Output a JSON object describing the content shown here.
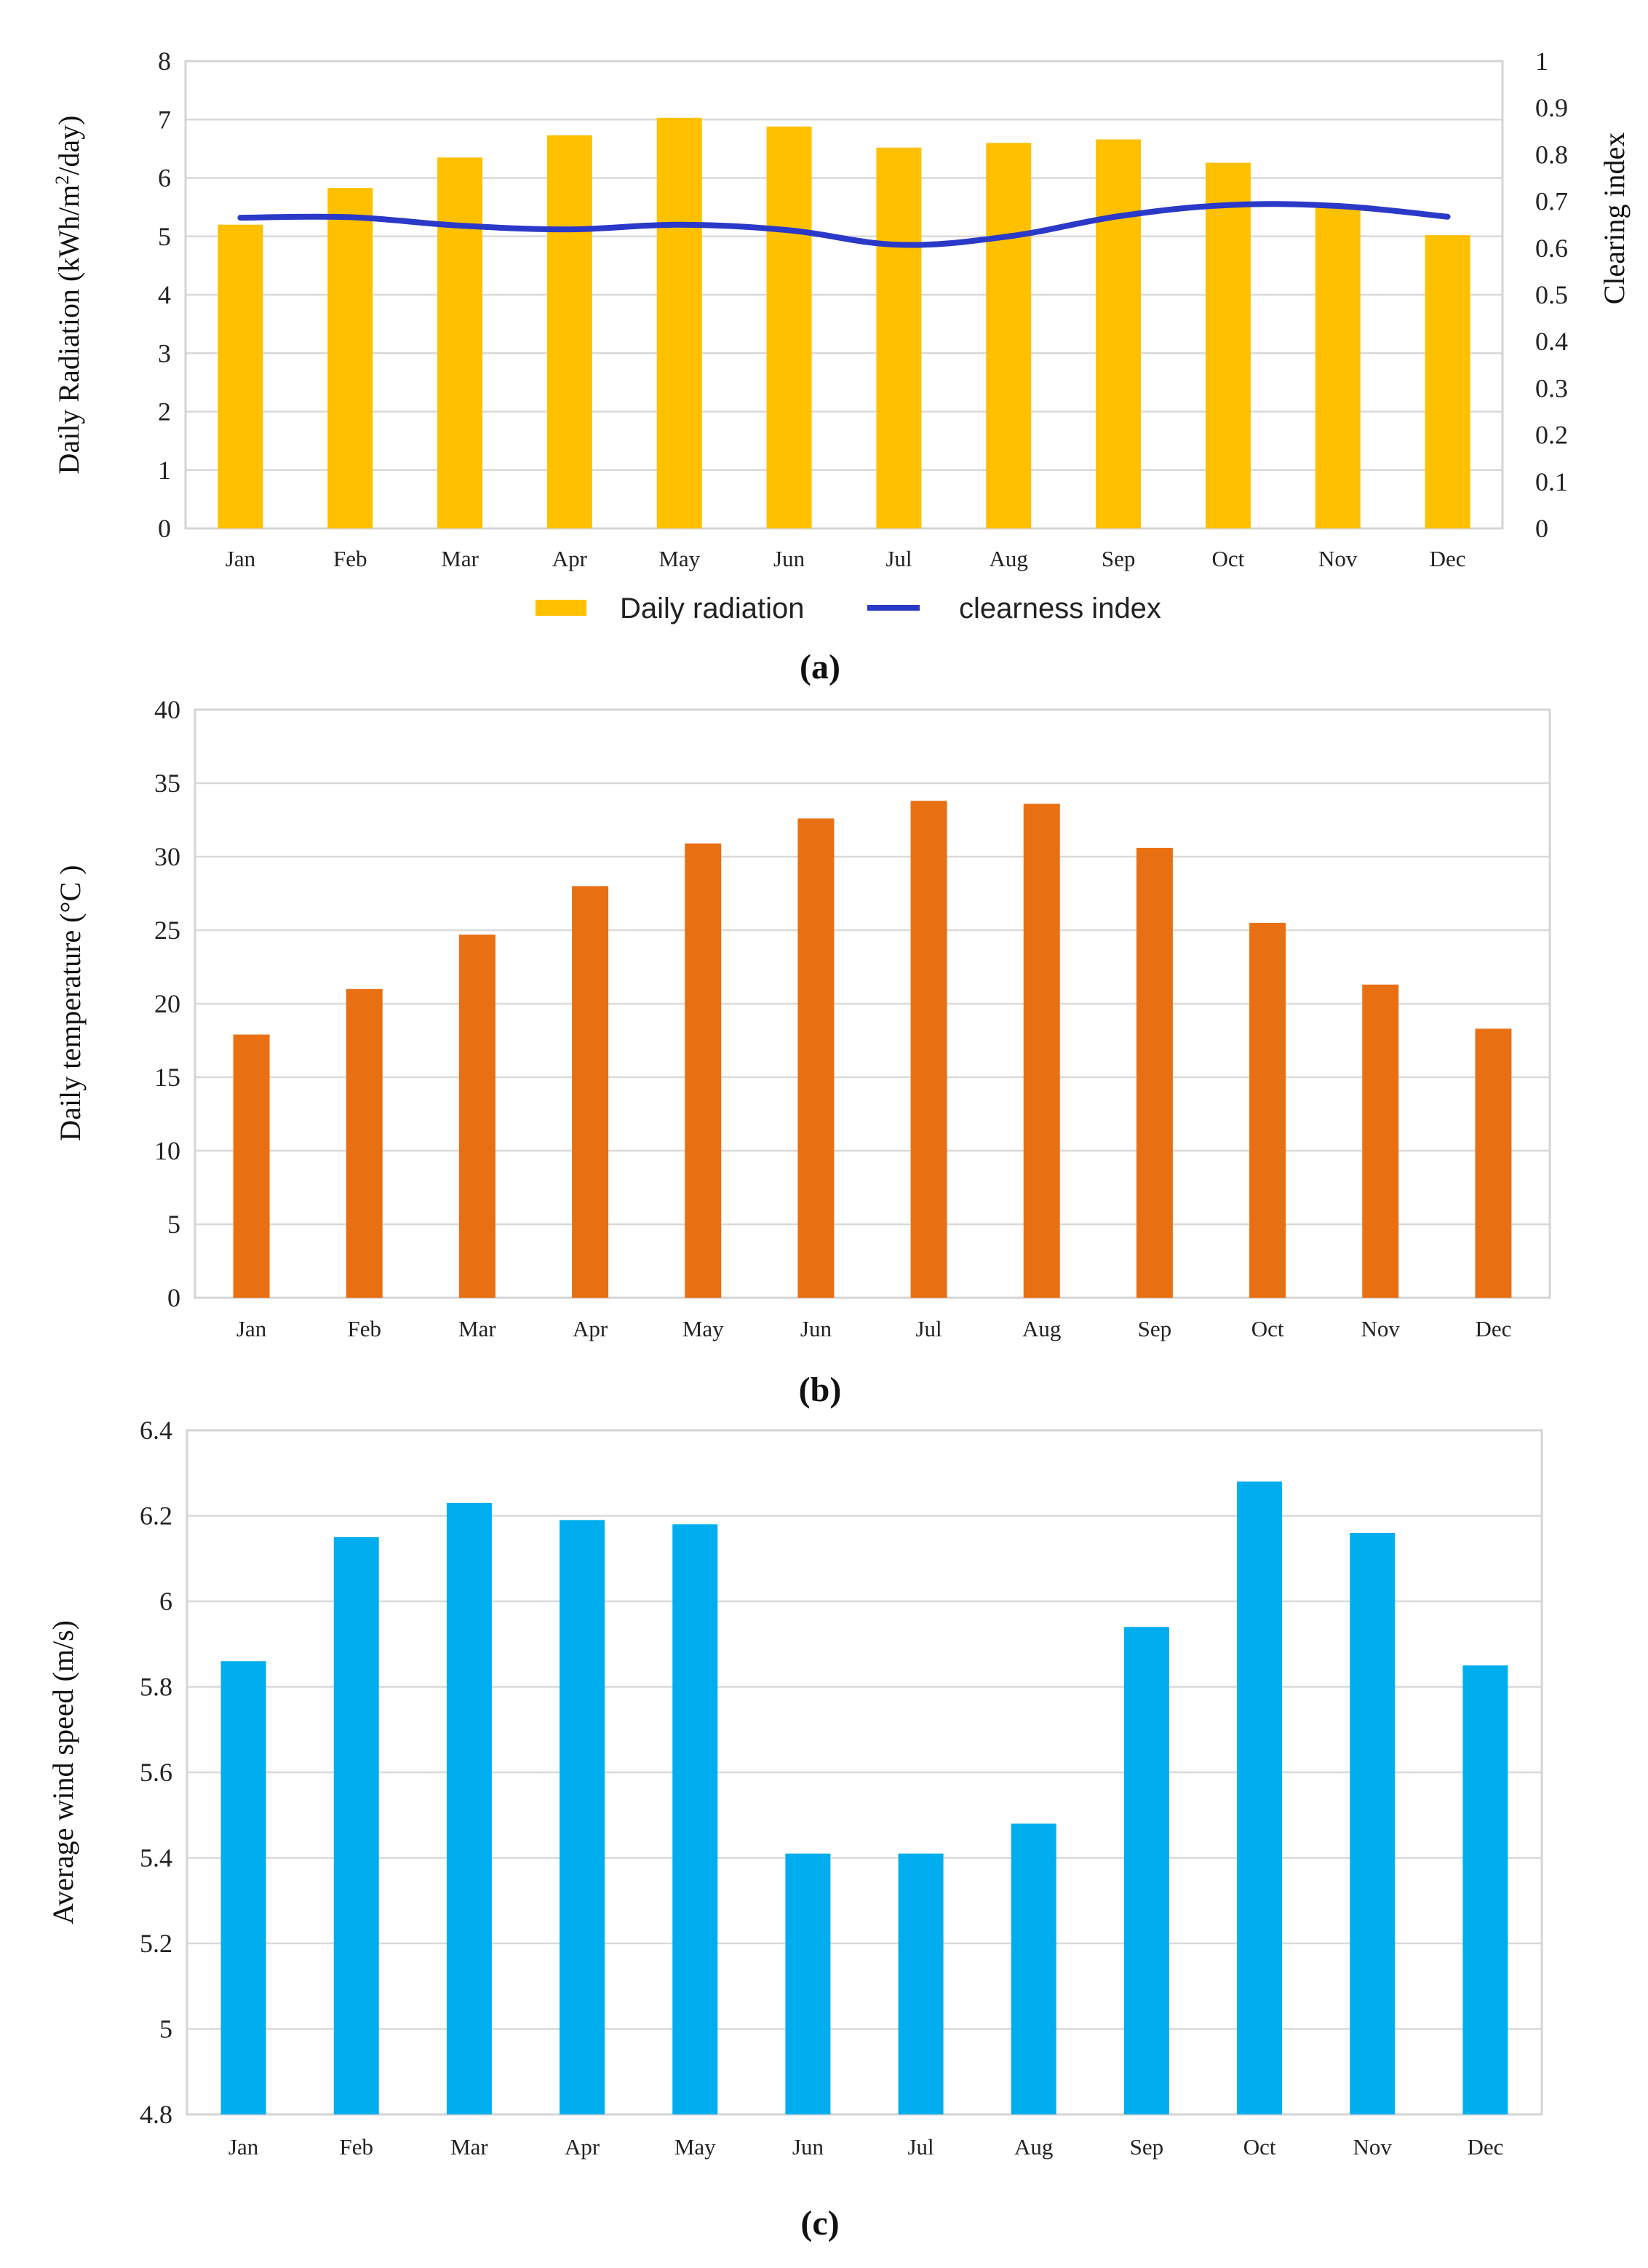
{
  "months": [
    "Jan",
    "Feb",
    "Mar",
    "Apr",
    "May",
    "Jun",
    "Jul",
    "Aug",
    "Sep",
    "Oct",
    "Nov",
    "Dec"
  ],
  "chart_data": [
    {
      "id": "a",
      "type": "bar",
      "caption": "(a)",
      "categories": [
        "Jan",
        "Feb",
        "Mar",
        "Apr",
        "May",
        "Jun",
        "Jul",
        "Aug",
        "Sep",
        "Oct",
        "Nov",
        "Dec"
      ],
      "series": [
        {
          "name": "Daily radiation",
          "type": "bar",
          "axis": "left",
          "color": "#FFC000",
          "values": [
            5.2,
            5.83,
            6.35,
            6.73,
            7.03,
            6.88,
            6.52,
            6.6,
            6.66,
            6.26,
            5.5,
            5.02
          ]
        },
        {
          "name": "clearness index",
          "type": "line",
          "axis": "right",
          "color": "#2B39C8",
          "values": [
            0.665,
            0.666,
            0.648,
            0.64,
            0.65,
            0.638,
            0.607,
            0.625,
            0.668,
            0.692,
            0.69,
            0.667
          ]
        }
      ],
      "ylabel": "Daily Radiation (kWh/m²/day)",
      "ylabel_parts": {
        "pre": "Daily Radiation (kWh/m",
        "sup": "2",
        "post": "/day)"
      },
      "y2label": "Clearing index",
      "ylim": [
        0,
        8
      ],
      "yticks": [
        "0",
        "1",
        "2",
        "3",
        "4",
        "5",
        "6",
        "7",
        "8"
      ],
      "y2lim": [
        0,
        1
      ],
      "y2ticks": [
        "0",
        "0.1",
        "0.2",
        "0.3",
        "0.4",
        "0.5",
        "0.6",
        "0.7",
        "0.8",
        "0.9",
        "1"
      ],
      "grid": true,
      "legend": "bottom"
    },
    {
      "id": "b",
      "type": "bar",
      "caption": "(b)",
      "categories": [
        "Jan",
        "Feb",
        "Mar",
        "Apr",
        "May",
        "Jun",
        "Jul",
        "Aug",
        "Sep",
        "Oct",
        "Nov",
        "Dec"
      ],
      "series": [
        {
          "name": "Daily temperature",
          "type": "bar",
          "color": "#E97012",
          "values": [
            17.9,
            21.0,
            24.7,
            28.0,
            30.9,
            32.6,
            33.8,
            33.6,
            30.6,
            25.5,
            21.3,
            18.3
          ]
        }
      ],
      "ylabel": "Daily temperature (°C )",
      "ylim": [
        0,
        40
      ],
      "yticks": [
        "0",
        "5",
        "10",
        "15",
        "20",
        "25",
        "30",
        "35",
        "40"
      ],
      "grid": true
    },
    {
      "id": "c",
      "type": "bar",
      "caption": "(c)",
      "categories": [
        "Jan",
        "Feb",
        "Mar",
        "Apr",
        "May",
        "Jun",
        "Jul",
        "Aug",
        "Sep",
        "Oct",
        "Nov",
        "Dec"
      ],
      "series": [
        {
          "name": "Average wind speed",
          "type": "bar",
          "color": "#00AEEF",
          "values": [
            5.86,
            6.15,
            6.23,
            6.19,
            6.18,
            5.41,
            5.41,
            5.48,
            5.94,
            6.28,
            6.16,
            5.85
          ]
        }
      ],
      "ylabel": "Average wind speed (m/s)",
      "ylim": [
        4.8,
        6.4
      ],
      "yticks": [
        "4.8",
        "5",
        "5.2",
        "5.4",
        "5.6",
        "5.8",
        "6",
        "6.2",
        "6.4"
      ],
      "grid": true
    }
  ]
}
